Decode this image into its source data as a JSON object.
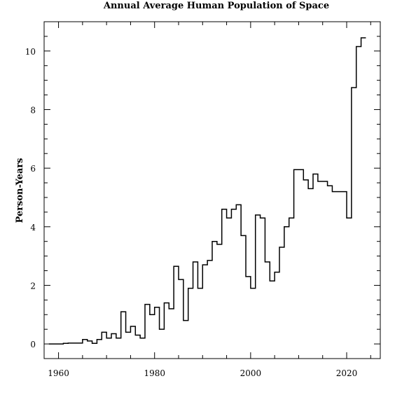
{
  "chart_data": {
    "type": "line",
    "title": "Annual Average Human Population of Space",
    "xlabel": "",
    "ylabel": "Person-Years",
    "xlim": [
      1957,
      2027
    ],
    "ylim": [
      -0.5,
      11.0
    ],
    "x_ticks": [
      1960,
      1980,
      2000,
      2020
    ],
    "y_ticks": [
      0,
      2,
      4,
      6,
      8,
      10
    ],
    "grid": false,
    "line_color": "#000000",
    "series": [
      {
        "name": "",
        "step": true,
        "x": [
          1958,
          1959,
          1960,
          1961,
          1962,
          1963,
          1964,
          1965,
          1966,
          1967,
          1968,
          1969,
          1970,
          1971,
          1972,
          1973,
          1974,
          1975,
          1976,
          1977,
          1978,
          1979,
          1980,
          1981,
          1982,
          1983,
          1984,
          1985,
          1986,
          1987,
          1988,
          1989,
          1990,
          1991,
          1992,
          1993,
          1994,
          1995,
          1996,
          1997,
          1998,
          1999,
          2000,
          2001,
          2002,
          2003,
          2004,
          2005,
          2006,
          2007,
          2008,
          2009,
          2010,
          2011,
          2012,
          2013,
          2014,
          2015,
          2016,
          2017,
          2018,
          2019,
          2020,
          2021,
          2022,
          2023
        ],
        "y": [
          0,
          0,
          0,
          0.02,
          0.03,
          0.03,
          0.03,
          0.15,
          0.1,
          0.02,
          0.15,
          0.4,
          0.2,
          0.35,
          0.2,
          1.1,
          0.4,
          0.6,
          0.3,
          0.2,
          1.35,
          1.0,
          1.25,
          0.5,
          1.4,
          1.2,
          2.65,
          2.2,
          0.8,
          1.9,
          2.8,
          1.9,
          2.7,
          2.85,
          3.5,
          3.4,
          4.6,
          4.3,
          4.6,
          4.75,
          3.7,
          2.3,
          1.9,
          4.4,
          4.3,
          2.8,
          2.15,
          2.45,
          3.3,
          4.0,
          4.3,
          5.95,
          5.95,
          5.6,
          5.3,
          5.8,
          5.55,
          5.55,
          5.4,
          5.2,
          5.2,
          5.2,
          4.3,
          8.75,
          10.15,
          10.45
        ]
      }
    ]
  }
}
